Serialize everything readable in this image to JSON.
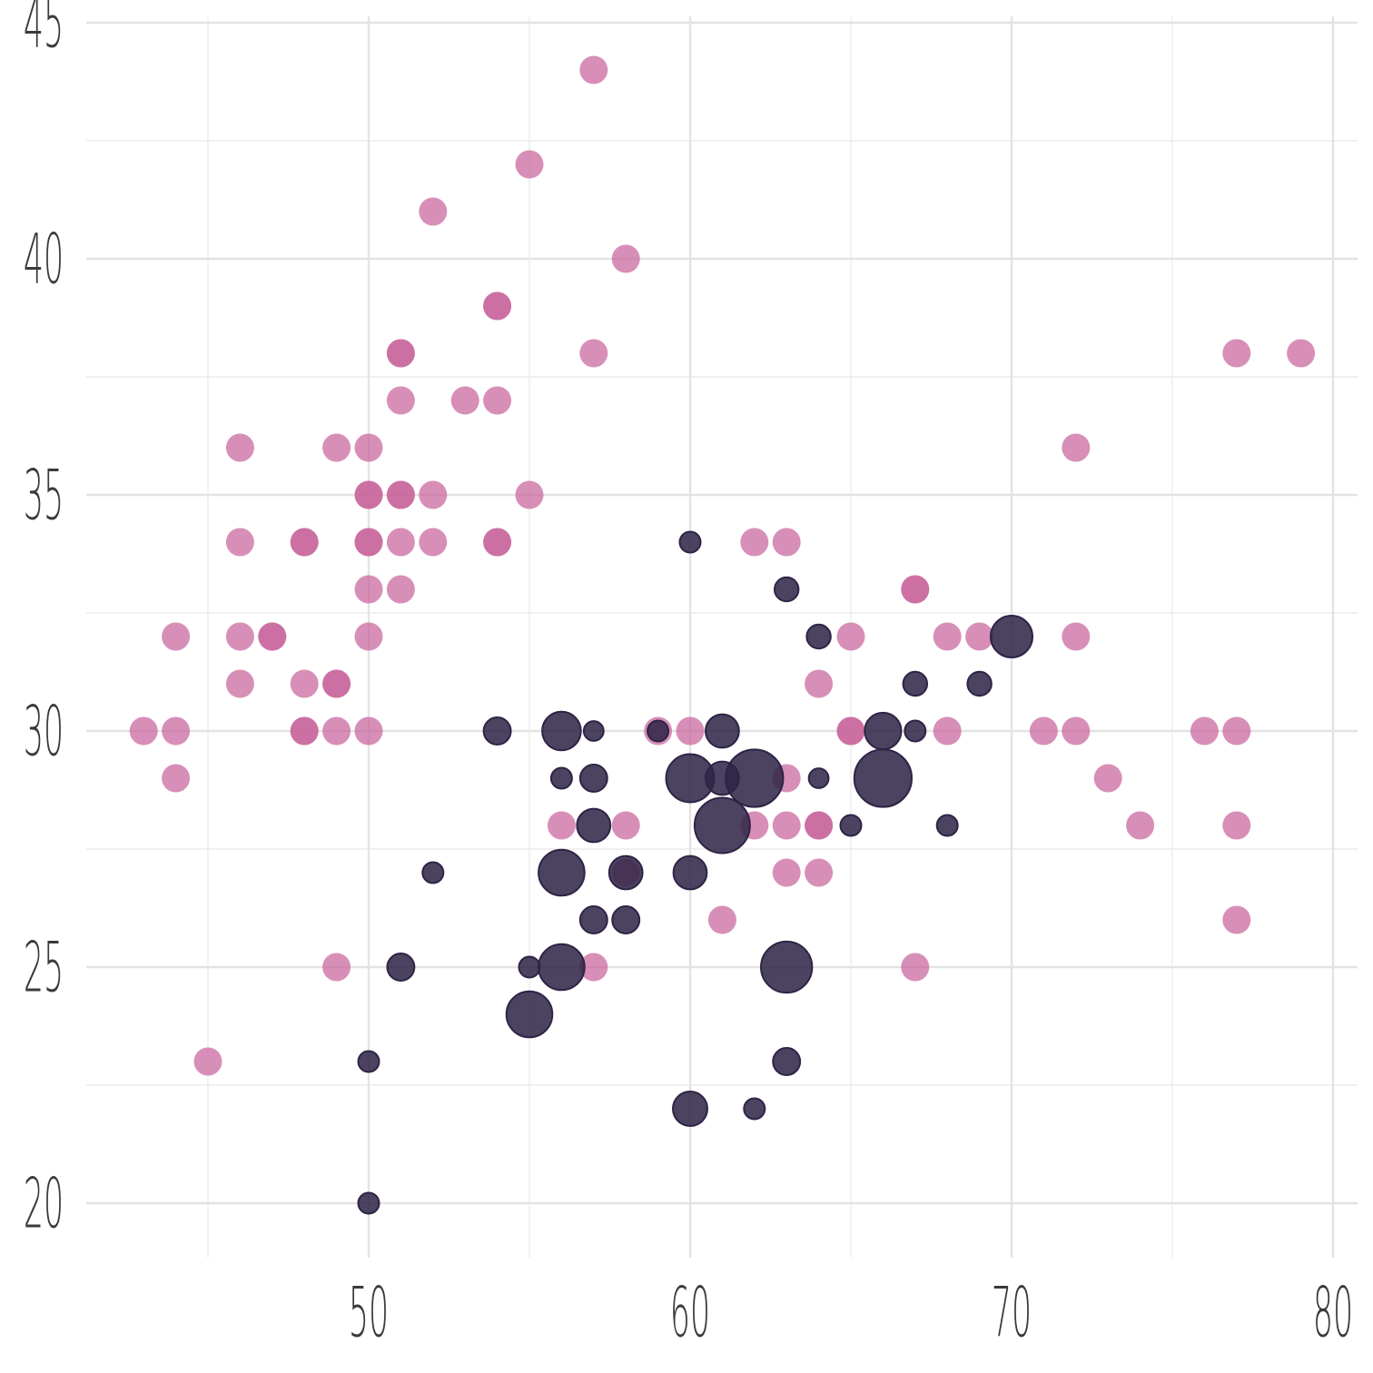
{
  "chart_data": {
    "type": "scatter",
    "title": "",
    "xlabel": "",
    "ylabel": "",
    "xlim": [
      42.2,
      80.8
    ],
    "ylim": [
      18.8,
      45.2
    ],
    "x_ticks": [
      50,
      60,
      70,
      80
    ],
    "y_ticks": [
      20,
      25,
      30,
      35,
      40,
      45
    ],
    "grid": true,
    "legend": "none",
    "series": [
      {
        "color": "#c8649b",
        "points": [
          [
            57,
            44
          ],
          [
            55,
            42
          ],
          [
            52,
            41
          ],
          [
            58,
            40
          ],
          [
            54,
            39
          ],
          [
            54,
            39
          ],
          [
            51,
            38
          ],
          [
            51,
            38
          ],
          [
            57,
            38
          ],
          [
            77,
            38
          ],
          [
            79,
            38
          ],
          [
            51,
            37
          ],
          [
            53,
            37
          ],
          [
            54,
            37
          ],
          [
            46,
            36
          ],
          [
            49,
            36
          ],
          [
            50,
            36
          ],
          [
            72,
            36
          ],
          [
            50,
            35
          ],
          [
            50,
            35
          ],
          [
            51,
            35
          ],
          [
            51,
            35
          ],
          [
            52,
            35
          ],
          [
            55,
            35
          ],
          [
            46,
            34
          ],
          [
            48,
            34
          ],
          [
            48,
            34
          ],
          [
            50,
            34
          ],
          [
            50,
            34
          ],
          [
            51,
            34
          ],
          [
            52,
            34
          ],
          [
            54,
            34
          ],
          [
            54,
            34
          ],
          [
            62,
            34
          ],
          [
            63,
            34
          ],
          [
            50,
            33
          ],
          [
            51,
            33
          ],
          [
            67,
            33
          ],
          [
            67,
            33
          ],
          [
            44,
            32
          ],
          [
            46,
            32
          ],
          [
            47,
            32
          ],
          [
            47,
            32
          ],
          [
            50,
            32
          ],
          [
            65,
            32
          ],
          [
            68,
            32
          ],
          [
            69,
            32
          ],
          [
            72,
            32
          ],
          [
            46,
            31
          ],
          [
            48,
            31
          ],
          [
            49,
            31
          ],
          [
            49,
            31
          ],
          [
            64,
            31
          ],
          [
            43,
            30
          ],
          [
            44,
            30
          ],
          [
            48,
            30
          ],
          [
            48,
            30
          ],
          [
            49,
            30
          ],
          [
            50,
            30
          ],
          [
            59,
            30
          ],
          [
            60,
            30
          ],
          [
            65,
            30
          ],
          [
            65,
            30
          ],
          [
            68,
            30
          ],
          [
            71,
            30
          ],
          [
            72,
            30
          ],
          [
            76,
            30
          ],
          [
            77,
            30
          ],
          [
            44,
            29
          ],
          [
            63,
            29
          ],
          [
            73,
            29
          ],
          [
            56,
            28
          ],
          [
            58,
            28
          ],
          [
            62,
            28
          ],
          [
            63,
            28
          ],
          [
            64,
            28
          ],
          [
            64,
            28
          ],
          [
            74,
            28
          ],
          [
            77,
            28
          ],
          [
            58,
            27
          ],
          [
            63,
            27
          ],
          [
            64,
            27
          ],
          [
            61,
            26
          ],
          [
            77,
            26
          ],
          [
            49,
            25
          ],
          [
            57,
            25
          ],
          [
            67,
            25
          ],
          [
            45,
            23
          ]
        ]
      },
      {
        "color": "#2e2446",
        "points": [
          [
            60,
            34,
            1
          ],
          [
            63,
            33,
            1.15
          ],
          [
            64,
            32,
            1.15
          ],
          [
            70,
            32,
            2
          ],
          [
            67,
            31,
            1.15
          ],
          [
            69,
            31,
            1.15
          ],
          [
            54,
            30,
            1.3
          ],
          [
            56,
            30,
            1.85
          ],
          [
            57,
            30,
            0.95
          ],
          [
            59,
            30,
            1
          ],
          [
            61,
            30,
            1.6
          ],
          [
            66,
            30,
            1.75
          ],
          [
            67,
            30,
            1
          ],
          [
            56,
            29,
            1
          ],
          [
            57,
            29,
            1.3
          ],
          [
            60,
            29,
            2.3
          ],
          [
            61,
            29,
            1.6
          ],
          [
            62,
            29,
            2.75
          ],
          [
            64,
            29,
            0.95
          ],
          [
            66,
            29,
            2.75
          ],
          [
            57,
            28,
            1.6
          ],
          [
            61,
            28,
            2.65
          ],
          [
            65,
            28,
            1
          ],
          [
            68,
            28,
            1
          ],
          [
            52,
            27,
            1
          ],
          [
            56,
            27,
            2.2
          ],
          [
            58,
            27,
            1.6
          ],
          [
            60,
            27,
            1.6
          ],
          [
            57,
            26,
            1.3
          ],
          [
            58,
            26,
            1.3
          ],
          [
            51,
            25,
            1.3
          ],
          [
            55,
            25,
            1
          ],
          [
            56,
            25,
            2.2
          ],
          [
            63,
            25,
            2.45
          ],
          [
            55,
            24,
            2.2
          ],
          [
            50,
            23,
            1
          ],
          [
            63,
            23,
            1.3
          ],
          [
            60,
            22,
            1.65
          ],
          [
            62,
            22,
            1
          ],
          [
            50,
            20,
            1
          ]
        ]
      }
    ]
  }
}
